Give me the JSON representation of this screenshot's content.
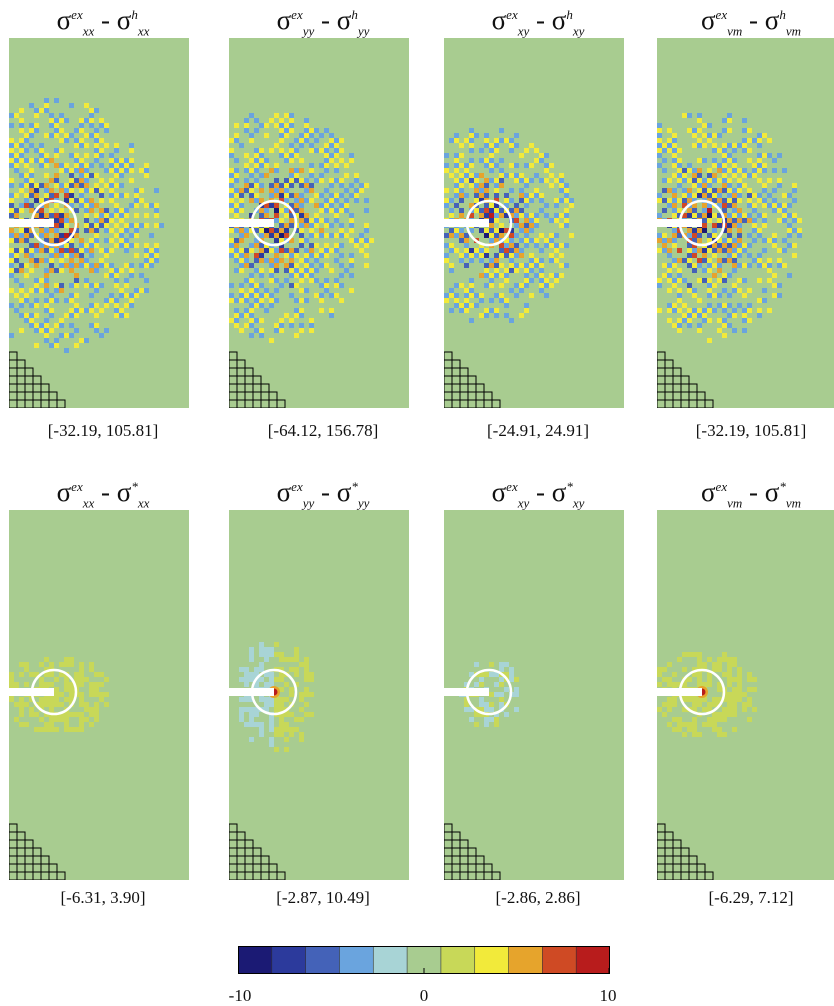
{
  "panels_row1": [
    {
      "id": "xx_h",
      "sym": "σ",
      "sup1": "ex",
      "sub1": "xx",
      "sup2": "h",
      "sub2": "xx",
      "range": "[-32.19, 105.81]"
    },
    {
      "id": "yy_h",
      "sym": "σ",
      "sup1": "ex",
      "sub1": "yy",
      "sup2": "h",
      "sub2": "yy",
      "range": "[-64.12, 156.78]"
    },
    {
      "id": "xy_h",
      "sym": "σ",
      "sup1": "ex",
      "sub1": "xy",
      "sup2": "h",
      "sub2": "xy",
      "range": "[-24.91, 24.91]"
    },
    {
      "id": "vm_h",
      "sym": "σ",
      "sup1": "ex",
      "sub1": "vm",
      "sup2": "h",
      "sub2": "vm",
      "range": "[-32.19, 105.81]"
    }
  ],
  "panels_row2": [
    {
      "id": "xx_s",
      "sym": "σ",
      "sup1": "ex",
      "sub1": "xx",
      "sup2": "*",
      "sub2": "xx",
      "range": "[-6.31, 3.90]"
    },
    {
      "id": "yy_s",
      "sym": "σ",
      "sup1": "ex",
      "sub1": "yy",
      "sup2": "*",
      "sub2": "yy",
      "range": "[-2.87, 10.49]"
    },
    {
      "id": "xy_s",
      "sym": "σ",
      "sup1": "ex",
      "sub1": "xy",
      "sup2": "*",
      "sub2": "xy",
      "range": "[-2.86, 2.86]"
    },
    {
      "id": "vm_s",
      "sym": "σ",
      "sup1": "ex",
      "sub1": "vm",
      "sup2": "*",
      "sub2": "vm",
      "range": "[-6.29, 7.12]"
    }
  ],
  "colorbar": {
    "min_label": "-10",
    "mid_label": "0",
    "max_label": "10",
    "colors": [
      "#1b1a74",
      "#2c3a9c",
      "#4462b8",
      "#6aa4de",
      "#a8d4d6",
      "#a8cc90",
      "#c8d858",
      "#f2ea3a",
      "#e6a42c",
      "#cf4a24",
      "#b81c1c"
    ]
  },
  "colors": {
    "background_field": "#a8cc90",
    "crack": "#ffffff",
    "circle": "#ffffff",
    "mesh": "#000000"
  }
}
